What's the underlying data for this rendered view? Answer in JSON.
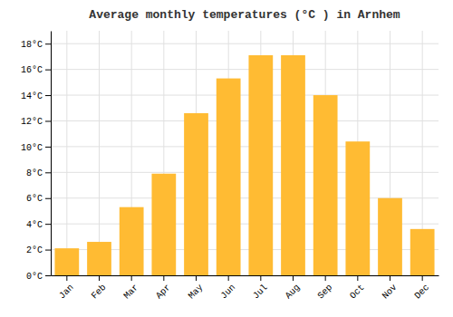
{
  "chart_data": {
    "type": "bar",
    "title": "Average monthly temperatures (°C ) in Arnhem",
    "categories": [
      "Jan",
      "Feb",
      "Mar",
      "Apr",
      "May",
      "Jun",
      "Jul",
      "Aug",
      "Sep",
      "Oct",
      "Nov",
      "Dec"
    ],
    "values": [
      2.1,
      2.6,
      5.3,
      7.9,
      12.6,
      15.3,
      17.1,
      17.1,
      14.0,
      10.4,
      6.0,
      3.6
    ],
    "color": "#FFBB33",
    "ylim": [
      0,
      19
    ],
    "yticks": [
      {
        "value": 0,
        "label": "0°C"
      },
      {
        "value": 2,
        "label": "2°C"
      },
      {
        "value": 4,
        "label": "4°C"
      },
      {
        "value": 6,
        "label": "6°C"
      },
      {
        "value": 8,
        "label": "8°C"
      },
      {
        "value": 10,
        "label": "10°C"
      },
      {
        "value": 12,
        "label": "12°C"
      },
      {
        "value": 14,
        "label": "14°C"
      },
      {
        "value": 16,
        "label": "16°C"
      },
      {
        "value": 18,
        "label": "18°C"
      }
    ],
    "grid": true
  }
}
